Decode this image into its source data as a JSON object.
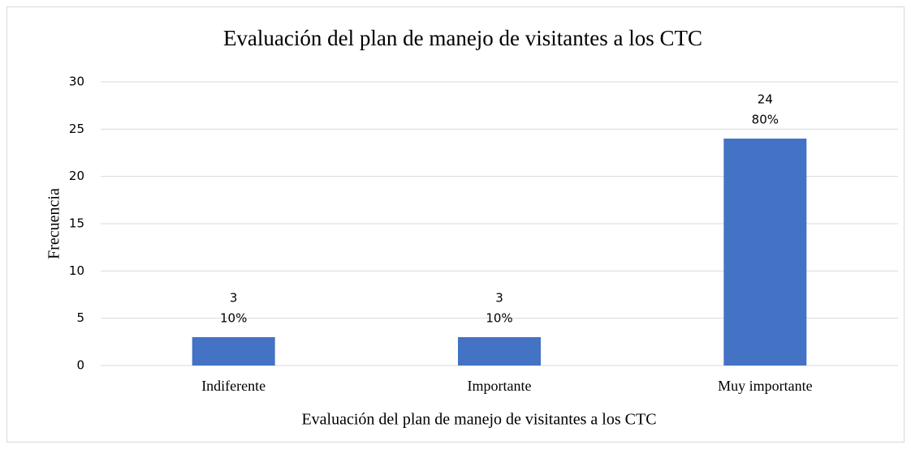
{
  "chart_data": {
    "type": "bar",
    "title": "Evaluación del plan de manejo de visitantes a los CTC",
    "x_label": "Evaluación del plan de manejo de visitantes a los CTC",
    "y_label": "Frecuencia",
    "categories": [
      "Indiferente",
      "Importante",
      "Muy importante"
    ],
    "values": [
      3,
      3,
      24
    ],
    "percent_labels": [
      "10%",
      "10%",
      "80%"
    ],
    "color": "#4472c4",
    "ylim": [
      0,
      30
    ],
    "yticks": [
      0,
      5,
      10,
      15,
      20,
      25,
      30
    ],
    "grid": true
  }
}
